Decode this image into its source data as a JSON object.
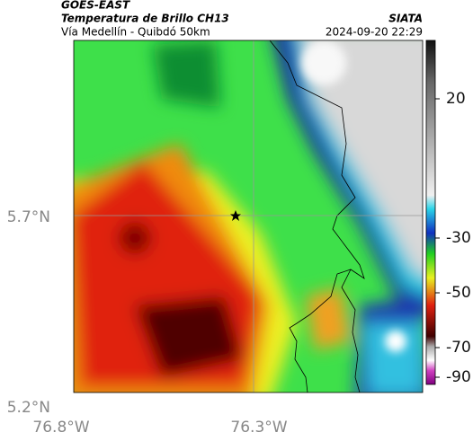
{
  "header": {
    "source": "GOES-EAST",
    "title": "Temperatura de Brillo CH13",
    "subtitle": "Vía Medellín - Quibdó 50km",
    "brand": "SIATA",
    "timestamp": "2024-09-20 22:29"
  },
  "map": {
    "lat_labels": [
      "5.7°N",
      "5.2°N"
    ],
    "lon_labels": [
      "76.8°W",
      "76.3°W"
    ]
  },
  "colorbar": {
    "tick_labels": [
      "20",
      "-30",
      "-50",
      "-70",
      "-90"
    ]
  }
}
